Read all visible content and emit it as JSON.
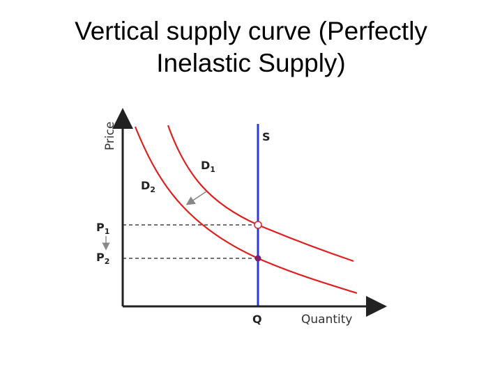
{
  "title": {
    "line1": "Vertical supply curve (Perfectly",
    "line2": "Inelastic Supply)"
  },
  "diagram": {
    "y_axis_label": "Price",
    "x_axis_label": "Quantity",
    "supply_label": "S",
    "demand1_label": "D",
    "demand1_sub": "1",
    "demand2_label": "D",
    "demand2_sub": "2",
    "price1_label": "P",
    "price1_sub": "1",
    "price2_label": "P",
    "price2_sub": "2",
    "quantity_label": "Q",
    "colors": {
      "supply": "#2b3bd1",
      "demand": "#e02020",
      "axis": "#222222",
      "guide": "#444444",
      "shift_arrow": "#888888",
      "equilibrium_new": "#7a1e6e"
    }
  }
}
